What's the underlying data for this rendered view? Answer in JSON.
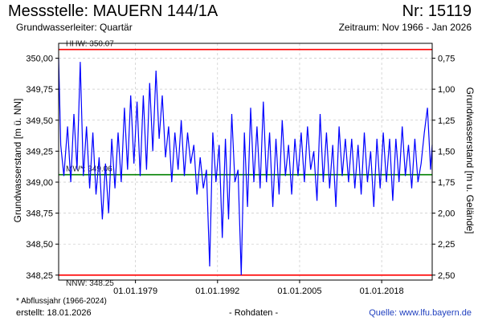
{
  "header": {
    "title": "Messstelle: MAUERN 144/1A",
    "number": "Nr: 15119",
    "aquifer": "Grundwasserleiter: Quartär",
    "period": "Zeitraum: Nov 1966 - Jan 2026"
  },
  "footer": {
    "footnote": "* Abflussjahr (1966-2024)",
    "created": "erstellt:  18.01.2026",
    "raw": "- Rohdaten -",
    "source": "Quelle: www.lfu.bayern.de"
  },
  "colors": {
    "series": "#0000ff",
    "hhw": "#ff0000",
    "nnw": "#ff0000",
    "mw": "#008000",
    "grid": "#c8c8c8"
  },
  "chart_data": {
    "type": "line",
    "title": "",
    "ylabel": "Grundwasserstand [m ü. NN]",
    "ylabel_right": "Grundwasserstand [m u. Gelände]",
    "ylim": [
      348.21,
      350.12
    ],
    "y_ticks": [
      "350,00",
      "349,75",
      "349,50",
      "349,25",
      "349,00",
      "348,75",
      "348,50",
      "348,25"
    ],
    "y_ticks_right": [
      "0,75",
      "1,00",
      "1,25",
      "1,50",
      "1,75",
      "2,00",
      "2,25",
      "2,50"
    ],
    "x_ticks": [
      "01.01.1979",
      "01.01.1992",
      "01.01.2005",
      "01.01.2018"
    ],
    "x_range": [
      "1966-11",
      "2026-01"
    ],
    "grid": true,
    "reference_lines": [
      {
        "name": "HHW",
        "label": "HHW: 350.07",
        "value": 350.07,
        "color": "#ff0000"
      },
      {
        "name": "MW",
        "label": "MW*: 349.06",
        "value": 349.06,
        "color": "#008000"
      },
      {
        "name": "NNW",
        "label": "NNW: 348.25",
        "value": 348.25,
        "color": "#ff0000"
      }
    ],
    "series": [
      {
        "x": [
          "1966-11",
          "1967-03",
          "1967-09",
          "1968-04",
          "1968-10",
          "1969-04",
          "1969-10",
          "1970-04",
          "1970-10",
          "1971-04",
          "1971-10",
          "1972-04",
          "1972-10",
          "1973-04",
          "1973-10",
          "1974-04",
          "1974-10",
          "1975-04",
          "1975-10",
          "1976-04",
          "1976-10",
          "1977-04",
          "1977-10",
          "1978-04",
          "1978-10",
          "1979-04",
          "1979-10",
          "1980-04",
          "1980-10",
          "1981-04",
          "1981-10",
          "1982-04",
          "1982-10",
          "1983-04",
          "1983-10",
          "1984-04",
          "1984-10",
          "1985-04",
          "1985-10",
          "1986-04",
          "1986-10",
          "1987-04",
          "1987-10",
          "1988-04",
          "1988-10",
          "1989-04",
          "1989-10",
          "1990-04",
          "1990-10",
          "1991-04",
          "1991-10",
          "1992-04",
          "1992-10",
          "1993-04",
          "1993-10",
          "1994-04",
          "1994-10",
          "1995-04",
          "1995-10",
          "1996-04",
          "1996-10",
          "1997-04",
          "1997-10",
          "1998-04",
          "1998-10",
          "1999-04",
          "1999-10",
          "2000-04",
          "2000-10",
          "2001-04",
          "2001-10",
          "2002-04",
          "2002-10",
          "2003-04",
          "2003-10",
          "2004-04",
          "2004-10",
          "2005-04",
          "2005-10",
          "2006-04",
          "2006-10",
          "2007-04",
          "2007-10",
          "2008-04",
          "2008-10",
          "2009-04",
          "2009-10",
          "2010-04",
          "2010-10",
          "2011-04",
          "2011-10",
          "2012-04",
          "2012-10",
          "2013-04",
          "2013-10",
          "2014-04",
          "2014-10",
          "2015-04",
          "2015-10",
          "2016-04",
          "2016-10",
          "2017-04",
          "2017-10",
          "2018-04",
          "2018-10",
          "2019-04",
          "2019-10",
          "2020-04",
          "2020-10",
          "2021-04",
          "2021-10",
          "2022-04",
          "2022-10",
          "2023-04",
          "2023-10",
          "2024-04",
          "2024-10",
          "2025-04",
          "2025-10",
          "2026-01"
        ],
        "values": [
          350.0,
          349.3,
          349.05,
          349.45,
          349.0,
          349.55,
          349.1,
          349.97,
          349.05,
          349.45,
          348.95,
          349.4,
          348.9,
          349.2,
          348.7,
          349.15,
          348.75,
          349.35,
          348.95,
          349.4,
          349.0,
          349.6,
          349.1,
          349.7,
          349.15,
          349.65,
          349.05,
          349.7,
          349.1,
          349.8,
          349.25,
          349.9,
          349.35,
          349.7,
          349.2,
          349.45,
          349.0,
          349.4,
          349.1,
          349.5,
          349.05,
          349.4,
          349.15,
          349.3,
          348.9,
          349.2,
          348.95,
          349.1,
          348.32,
          349.4,
          349.0,
          349.3,
          348.55,
          349.35,
          348.7,
          349.55,
          349.0,
          349.1,
          348.25,
          349.4,
          348.8,
          349.6,
          349.0,
          349.45,
          348.95,
          349.65,
          349.0,
          349.4,
          348.8,
          349.35,
          348.9,
          349.5,
          349.05,
          349.3,
          348.9,
          349.35,
          349.05,
          349.4,
          349.0,
          349.45,
          349.1,
          349.25,
          348.85,
          349.55,
          349.0,
          349.4,
          348.95,
          349.3,
          348.8,
          349.45,
          349.05,
          349.35,
          349.0,
          349.35,
          348.95,
          349.3,
          348.9,
          349.4,
          349.0,
          349.25,
          348.8,
          349.35,
          348.95,
          349.4,
          349.0,
          349.35,
          348.85,
          349.35,
          349.0,
          349.45,
          349.05,
          349.3,
          348.95,
          349.35,
          349.0,
          349.15,
          349.4,
          349.6,
          349.1,
          349.3
        ]
      }
    ]
  }
}
